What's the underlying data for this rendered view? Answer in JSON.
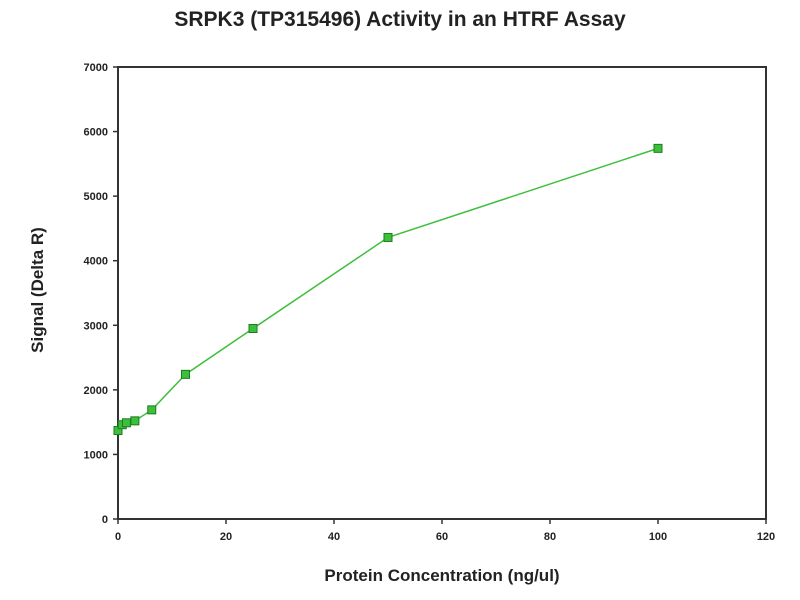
{
  "chart_data": {
    "type": "line",
    "title": "SRPK3 (TP315496) Activity in an HTRF Assay",
    "xlabel": "Protein Concentration (ng/ul)",
    "ylabel": "Signal (Delta R)",
    "xlim": [
      0,
      120
    ],
    "ylim": [
      0,
      7000
    ],
    "xticks": [
      0,
      20,
      40,
      60,
      80,
      100,
      120
    ],
    "yticks": [
      0,
      1000,
      2000,
      3000,
      4000,
      5000,
      6000,
      7000
    ],
    "grid": false,
    "legend": "none",
    "series": [
      {
        "color": "#3cc03c",
        "marker": "square",
        "x": [
          0,
          0.78,
          1.56,
          3.125,
          6.25,
          12.5,
          25,
          50,
          100
        ],
        "y": [
          1370,
          1460,
          1490,
          1520,
          1690,
          2240,
          2950,
          4360,
          5740
        ]
      }
    ]
  }
}
